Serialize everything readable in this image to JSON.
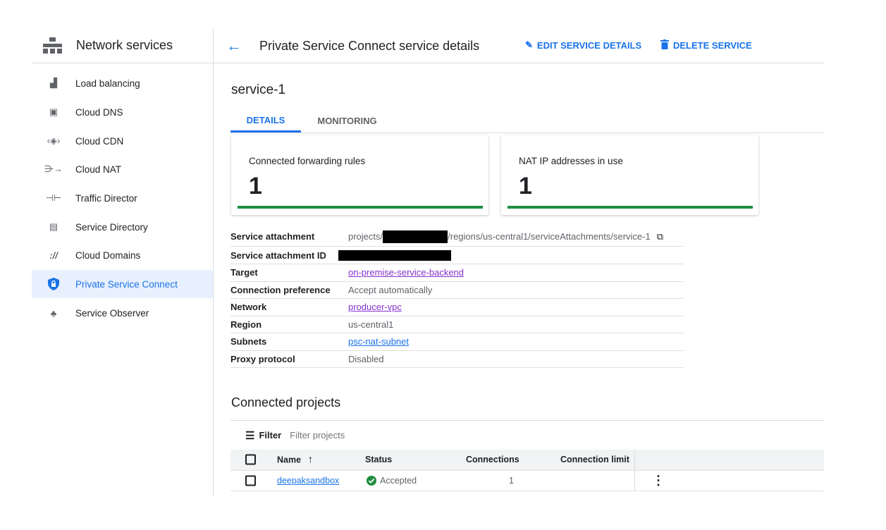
{
  "sidebar": {
    "title": "Network services",
    "icon": "network-services-icon",
    "items": [
      {
        "label": "Load balancing",
        "icon": "load-balancing-icon"
      },
      {
        "label": "Cloud DNS",
        "icon": "cloud-dns-icon"
      },
      {
        "label": "Cloud CDN",
        "icon": "cloud-cdn-icon"
      },
      {
        "label": "Cloud NAT",
        "icon": "cloud-nat-icon"
      },
      {
        "label": "Traffic Director",
        "icon": "traffic-director-icon"
      },
      {
        "label": "Service Directory",
        "icon": "service-directory-icon"
      },
      {
        "label": "Cloud Domains",
        "icon": "cloud-domains-icon"
      },
      {
        "label": "Private Service Connect",
        "icon": "shield-lock-icon",
        "active": true
      },
      {
        "label": "Service Observer",
        "icon": "service-observer-icon"
      }
    ]
  },
  "header": {
    "title": "Private Service Connect service details",
    "edit_label": "EDIT SERVICE DETAILS",
    "delete_label": "DELETE SERVICE"
  },
  "service_name": "service-1",
  "tabs": [
    {
      "label": "DETAILS",
      "active": true
    },
    {
      "label": "MONITORING"
    }
  ],
  "cards": [
    {
      "label": "Connected forwarding rules",
      "value": "1"
    },
    {
      "label": "NAT IP addresses in use",
      "value": "1"
    }
  ],
  "details": {
    "service_attachment": {
      "label": "Service attachment",
      "prefix": "projects/",
      "suffix": "/regions/us-central1/serviceAttachments/service-1"
    },
    "service_attachment_id": {
      "label": "Service attachment ID"
    },
    "target": {
      "label": "Target",
      "value": "on-premise-service-backend"
    },
    "connection_preference": {
      "label": "Connection preference",
      "value": "Accept automatically"
    },
    "network": {
      "label": "Network",
      "value": "producer-vpc"
    },
    "region": {
      "label": "Region",
      "value": "us-central1"
    },
    "subnets": {
      "label": "Subnets",
      "value": "psc-nat-subnet"
    },
    "proxy_protocol": {
      "label": "Proxy protocol",
      "value": "Disabled"
    }
  },
  "connected_projects": {
    "title": "Connected projects",
    "filter_label": "Filter",
    "filter_placeholder": "Filter projects",
    "columns": {
      "name": "Name",
      "status": "Status",
      "connections": "Connections",
      "limit": "Connection limit"
    },
    "rows": [
      {
        "name": "deepaksandbox",
        "status": "Accepted",
        "connections": "1",
        "limit": ""
      }
    ]
  },
  "colors": {
    "accent": "#1a73e8",
    "success": "#1e8e3e",
    "visited_link": "#8430ce"
  }
}
